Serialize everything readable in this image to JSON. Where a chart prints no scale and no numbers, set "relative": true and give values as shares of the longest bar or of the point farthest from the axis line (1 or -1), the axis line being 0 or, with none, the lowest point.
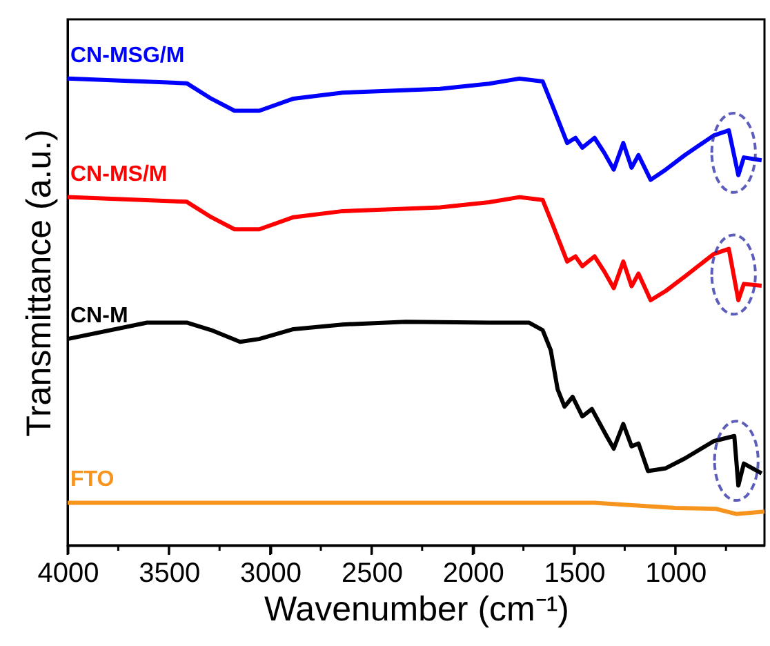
{
  "chart_data": {
    "type": "line",
    "relative": true,
    "xlabel": "Wavenumber (cm⁻¹)",
    "ylabel": "Transmittance (a.u.)",
    "xlim": [
      4000,
      560
    ],
    "xticks": [
      4000,
      {
        "value": 3750,
        "label": null
      },
      3500,
      {
        "value": 3250,
        "label": null
      },
      3000,
      {
        "value": 2750,
        "label": null
      },
      2500,
      {
        "value": 2250,
        "label": null
      },
      2000,
      {
        "value": 1750,
        "label": null
      },
      1500,
      {
        "value": 1250,
        "label": null
      },
      1000,
      {
        "value": 750,
        "label": null
      }
    ],
    "tick_labels": "x",
    "grid": false,
    "legend": false,
    "marker": "none",
    "line_style": "solid",
    "series": [
      {
        "name": "CN-MSG/M",
        "color": "#0000ff",
        "x": [
          4000,
          3412,
          3291,
          3176,
          3054,
          2885,
          2642,
          2162,
          1919,
          1770,
          1655,
          1601,
          1534,
          1493,
          1459,
          1399,
          1351,
          1304,
          1257,
          1216,
          1182,
          1122,
          1047,
          953,
          811,
          736,
          689,
          662,
          574
        ],
        "values": [
          1.0,
          0.99,
          0.957,
          0.931,
          0.931,
          0.957,
          0.97,
          0.978,
          0.989,
          1.0,
          0.994,
          0.936,
          0.862,
          0.873,
          0.852,
          0.873,
          0.841,
          0.805,
          0.862,
          0.809,
          0.836,
          0.783,
          0.805,
          0.836,
          0.878,
          0.889,
          0.793,
          0.831,
          0.825
        ]
      },
      {
        "name": "CN-MS/M",
        "color": "#ff0000",
        "x": [
          4000,
          3412,
          3291,
          3176,
          3054,
          2885,
          2642,
          2162,
          1919,
          1770,
          1655,
          1601,
          1534,
          1493,
          1459,
          1399,
          1351,
          1304,
          1257,
          1216,
          1182,
          1122,
          1047,
          953,
          811,
          736,
          689,
          662,
          574
        ],
        "values": [
          0.746,
          0.736,
          0.703,
          0.677,
          0.677,
          0.703,
          0.716,
          0.724,
          0.735,
          0.746,
          0.74,
          0.682,
          0.608,
          0.619,
          0.598,
          0.619,
          0.587,
          0.551,
          0.608,
          0.555,
          0.582,
          0.525,
          0.545,
          0.576,
          0.624,
          0.635,
          0.525,
          0.56,
          0.556
        ]
      },
      {
        "name": "CN-M",
        "color": "#000000",
        "x": [
          4000,
          3608,
          3412,
          3291,
          3149,
          3054,
          2885,
          2642,
          2331,
          1919,
          1723,
          1655,
          1615,
          1581,
          1547,
          1507,
          1459,
          1412,
          1338,
          1304,
          1257,
          1216,
          1182,
          1135,
          1047,
          953,
          811,
          709,
          689,
          662,
          574
        ],
        "values": [
          0.442,
          0.477,
          0.477,
          0.461,
          0.436,
          0.442,
          0.463,
          0.473,
          0.479,
          0.477,
          0.477,
          0.461,
          0.418,
          0.334,
          0.297,
          0.318,
          0.276,
          0.292,
          0.233,
          0.207,
          0.26,
          0.212,
          0.218,
          0.159,
          0.165,
          0.186,
          0.223,
          0.234,
          0.128,
          0.175,
          0.154
        ]
      },
      {
        "name": "FTO",
        "color": "#f7941d",
        "x": [
          4000,
          3000,
          2000,
          1400,
          1000,
          800,
          700,
          560
        ],
        "values": [
          0.091,
          0.091,
          0.091,
          0.091,
          0.08,
          0.078,
          0.067,
          0.072
        ]
      }
    ]
  }
}
